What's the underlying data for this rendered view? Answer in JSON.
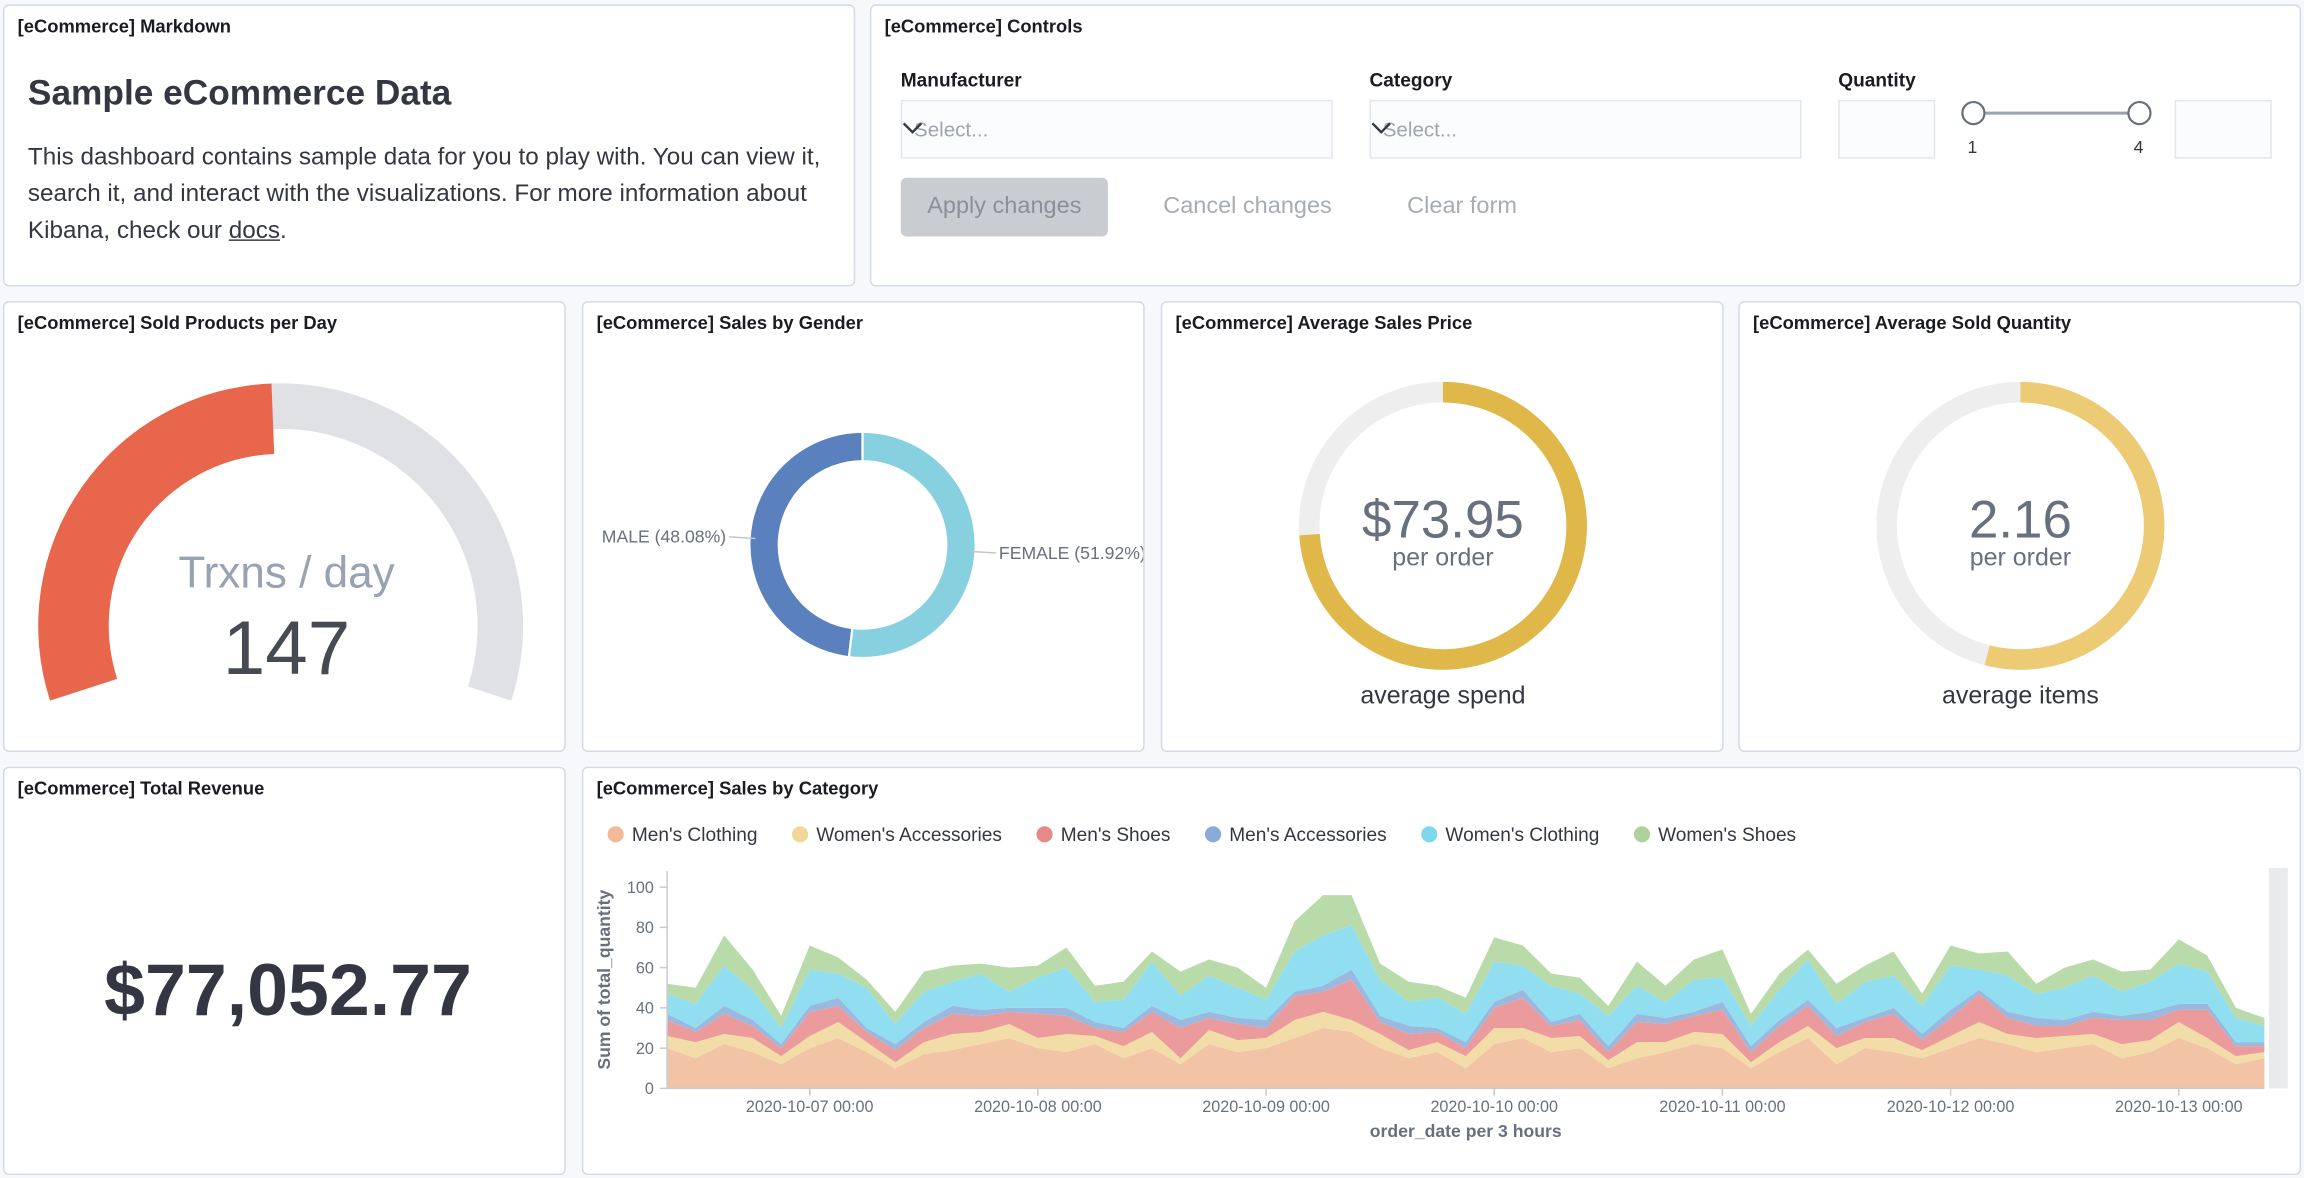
{
  "markdown": {
    "title": "[eCommerce] Markdown",
    "heading": "Sample eCommerce Data",
    "body": "This dashboard contains sample data for you to play with. You can view it, search it, and interact with the visualizations. For more information about Kibana, check our ",
    "link": "docs",
    "end": "."
  },
  "controls": {
    "title": "[eCommerce] Controls",
    "manufacturer": {
      "label": "Manufacturer",
      "placeholder": "Select..."
    },
    "category": {
      "label": "Category",
      "placeholder": "Select..."
    },
    "quantity": {
      "label": "Quantity",
      "min": 1,
      "max": 4
    },
    "buttons": [
      "Apply changes",
      "Cancel changes",
      "Clear form"
    ]
  },
  "chart_data": [
    {
      "type": "gauge",
      "title": "[eCommerce] Sold Products per Day",
      "label": "Trxns / day",
      "value": 147,
      "range": [
        0,
        300
      ],
      "color": "#e7664c",
      "track_color": "#e0e1e5"
    },
    {
      "type": "pie",
      "title": "[eCommerce] Sales by Gender",
      "values": [
        48.08,
        51.92
      ],
      "value_labels": [
        "MALE (48.08%)",
        "FEMALE (51.92%)"
      ],
      "colors": [
        "#5b80be",
        "#86d0e0"
      ],
      "donut": true
    },
    {
      "type": "goal",
      "title": "[eCommerce] Average Sales Price",
      "value": 73.95,
      "value_label": "$73.95",
      "sublabel": "per order",
      "label": "average spend",
      "range": [
        0,
        100
      ],
      "color": "#e0b84a"
    },
    {
      "type": "goal",
      "title": "[eCommerce] Average Sold Quantity",
      "value": 2.16,
      "sublabel": "per order",
      "label": "average items",
      "range": [
        0,
        4
      ],
      "color": "#edca74"
    },
    {
      "type": "metric",
      "title": "[eCommerce] Total Revenue",
      "value": 77052.77,
      "value_label": "$77,052.77"
    },
    {
      "type": "area",
      "stacked": true,
      "title": "[eCommerce] Sales by Category",
      "legend": "top",
      "xlabel": "order_date per 3 hours",
      "ylabel": "Sum of total_quantity",
      "x": [
        "2020-10-06 09:00",
        "2020-10-06 12:00",
        "2020-10-06 15:00",
        "2020-10-06 18:00",
        "2020-10-06 21:00",
        "2020-10-07 00:00",
        "2020-10-07 03:00",
        "2020-10-07 06:00",
        "2020-10-07 09:00",
        "2020-10-07 12:00",
        "2020-10-07 15:00",
        "2020-10-07 18:00",
        "2020-10-07 21:00",
        "2020-10-08 00:00",
        "2020-10-08 03:00",
        "2020-10-08 06:00",
        "2020-10-08 09:00",
        "2020-10-08 12:00",
        "2020-10-08 15:00",
        "2020-10-08 18:00",
        "2020-10-08 21:00",
        "2020-10-09 00:00",
        "2020-10-09 03:00",
        "2020-10-09 06:00",
        "2020-10-09 09:00",
        "2020-10-09 12:00",
        "2020-10-09 15:00",
        "2020-10-09 18:00",
        "2020-10-09 21:00",
        "2020-10-10 00:00",
        "2020-10-10 03:00",
        "2020-10-10 06:00",
        "2020-10-10 09:00",
        "2020-10-10 12:00",
        "2020-10-10 15:00",
        "2020-10-10 18:00",
        "2020-10-10 21:00",
        "2020-10-11 00:00",
        "2020-10-11 03:00",
        "2020-10-11 06:00",
        "2020-10-11 09:00",
        "2020-10-11 12:00",
        "2020-10-11 15:00",
        "2020-10-11 18:00",
        "2020-10-11 21:00",
        "2020-10-12 00:00",
        "2020-10-12 03:00",
        "2020-10-12 06:00",
        "2020-10-12 09:00",
        "2020-10-12 12:00",
        "2020-10-12 15:00",
        "2020-10-12 18:00",
        "2020-10-12 21:00",
        "2020-10-13 00:00",
        "2020-10-13 03:00",
        "2020-10-13 06:00",
        "2020-10-13 09:00"
      ],
      "xlim": [
        "2020-10-06 09:00",
        "2020-10-13 09:00"
      ],
      "xticks": [
        "2020-10-07 00:00",
        "2020-10-08 00:00",
        "2020-10-09 00:00",
        "2020-10-10 00:00",
        "2020-10-11 00:00",
        "2020-10-12 00:00",
        "2020-10-13 00:00"
      ],
      "ylim": [
        0,
        108
      ],
      "yticks": [
        0,
        20,
        40,
        60,
        80,
        100
      ],
      "series": [
        {
          "name": "Men's Clothing",
          "color": "#f1b995",
          "values": [
            20,
            15,
            22,
            18,
            12,
            20,
            25,
            18,
            10,
            17,
            19,
            22,
            25,
            20,
            18,
            22,
            15,
            20,
            12,
            22,
            18,
            20,
            25,
            30,
            28,
            20,
            15,
            18,
            10,
            22,
            25,
            18,
            20,
            10,
            15,
            18,
            22,
            20,
            10,
            18,
            25,
            12,
            20,
            18,
            15,
            20,
            25,
            22,
            18,
            20,
            22,
            15,
            18,
            25,
            20,
            12,
            15
          ]
        },
        {
          "name": "Women's Accessories",
          "color": "#f0d799",
          "values": [
            6,
            8,
            5,
            7,
            4,
            6,
            8,
            5,
            3,
            6,
            8,
            6,
            7,
            5,
            9,
            4,
            6,
            8,
            3,
            7,
            6,
            5,
            9,
            8,
            6,
            7,
            4,
            5,
            6,
            8,
            5,
            7,
            6,
            4,
            8,
            5,
            6,
            7,
            3,
            5,
            6,
            8,
            5,
            7,
            4,
            6,
            8,
            5,
            7,
            6,
            5,
            7,
            6,
            8,
            5,
            4,
            3
          ]
        },
        {
          "name": "Men's Shoes",
          "color": "#e7898a",
          "values": [
            8,
            5,
            10,
            6,
            4,
            12,
            8,
            5,
            6,
            7,
            10,
            8,
            6,
            12,
            9,
            4,
            7,
            10,
            15,
            6,
            8,
            5,
            12,
            10,
            20,
            6,
            8,
            5,
            4,
            10,
            15,
            6,
            8,
            4,
            10,
            9,
            8,
            12,
            5,
            8,
            10,
            6,
            8,
            12,
            5,
            9,
            14,
            8,
            6,
            5,
            8,
            12,
            10,
            6,
            14,
            5,
            3
          ]
        },
        {
          "name": "Men's Accessories",
          "color": "#8aabd9",
          "values": [
            3,
            2,
            4,
            3,
            2,
            3,
            4,
            2,
            3,
            3,
            4,
            3,
            2,
            3,
            4,
            3,
            2,
            3,
            4,
            3,
            3,
            4,
            2,
            3,
            5,
            3,
            4,
            2,
            3,
            3,
            4,
            2,
            3,
            3,
            4,
            3,
            2,
            4,
            3,
            3,
            3,
            4,
            2,
            3,
            3,
            4,
            2,
            3,
            4,
            3,
            3,
            2,
            4,
            3,
            3,
            2,
            2
          ]
        },
        {
          "name": "Women's Clothing",
          "color": "#7dd8ec",
          "values": [
            10,
            12,
            20,
            15,
            8,
            18,
            12,
            20,
            10,
            15,
            12,
            18,
            8,
            15,
            20,
            10,
            14,
            22,
            12,
            18,
            15,
            10,
            20,
            25,
            22,
            18,
            12,
            15,
            14,
            20,
            12,
            18,
            10,
            15,
            14,
            8,
            16,
            12,
            10,
            15,
            20,
            12,
            18,
            16,
            14,
            22,
            10,
            18,
            12,
            16,
            18,
            12,
            15,
            20,
            16,
            12,
            8
          ]
        },
        {
          "name": "Women's Shoes",
          "color": "#add39a",
          "values": [
            5,
            8,
            15,
            10,
            6,
            12,
            8,
            4,
            6,
            10,
            8,
            5,
            12,
            6,
            10,
            8,
            9,
            5,
            12,
            8,
            10,
            6,
            15,
            20,
            15,
            8,
            10,
            6,
            8,
            12,
            10,
            6,
            8,
            5,
            12,
            8,
            10,
            14,
            6,
            8,
            5,
            10,
            8,
            12,
            6,
            10,
            8,
            12,
            5,
            10,
            8,
            10,
            6,
            12,
            8,
            5,
            4
          ]
        }
      ]
    }
  ]
}
